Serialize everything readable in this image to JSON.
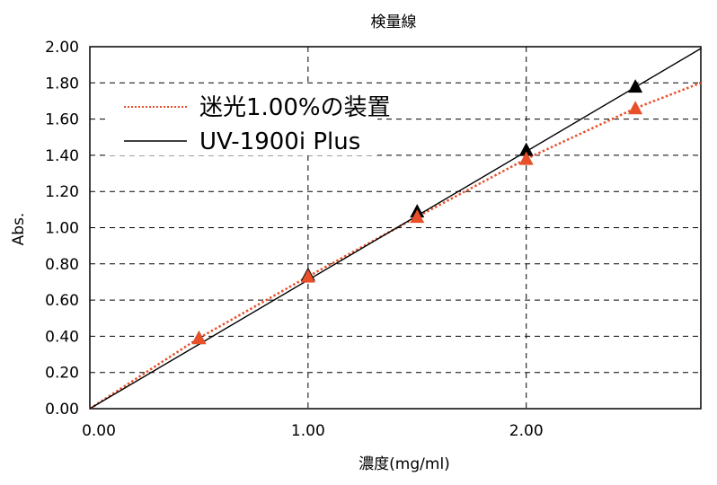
{
  "chart_data": {
    "type": "scatter",
    "title": "検量線",
    "xlabel": "濃度(mg/ml)",
    "ylabel": "Abs.",
    "xlim": [
      0,
      2.8
    ],
    "ylim": [
      0,
      2.0
    ],
    "xticks": [
      "0.00",
      "1.00",
      "2.00"
    ],
    "xtick_values": [
      0,
      1.0,
      2.0
    ],
    "yticks": [
      "0.00",
      "0.20",
      "0.40",
      "0.60",
      "0.80",
      "1.00",
      "1.20",
      "1.40",
      "1.60",
      "1.80",
      "2.00"
    ],
    "ytick_values": [
      0,
      0.2,
      0.4,
      0.6,
      0.8,
      1.0,
      1.2,
      1.4,
      1.6,
      1.8,
      2.0
    ],
    "grid": true,
    "legend_position": "top-left",
    "series": [
      {
        "name": "迷光1.00%の装置",
        "color": "#e8502a",
        "line_style": "dotted",
        "x": [
          0.5,
          1.0,
          1.5,
          2.0,
          2.5
        ],
        "y": [
          0.39,
          0.73,
          1.06,
          1.38,
          1.66
        ],
        "fit_line": {
          "x": [
            0,
            0.5,
            1.0,
            1.5,
            2.0,
            2.5,
            2.8
          ],
          "y": [
            0,
            0.39,
            0.73,
            1.06,
            1.38,
            1.66,
            1.8
          ]
        }
      },
      {
        "name": "UV-1900i Plus",
        "color": "#000000",
        "line_style": "solid",
        "x": [
          0.5,
          1.0,
          1.5,
          2.0,
          2.5
        ],
        "y": [
          0.39,
          0.74,
          1.09,
          1.43,
          1.78
        ],
        "fit_line": {
          "x": [
            0,
            2.8
          ],
          "y": [
            0,
            1.99
          ]
        }
      }
    ]
  }
}
